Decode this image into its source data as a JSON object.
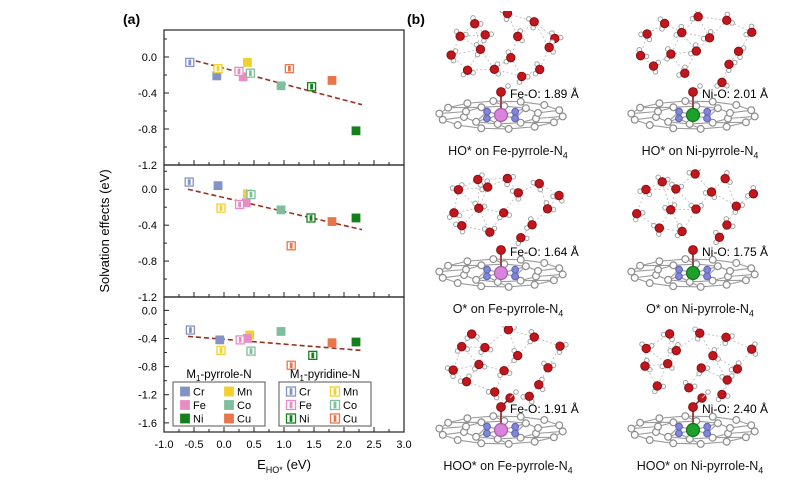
{
  "figure": {
    "panel_a_label": "(a)",
    "panel_b_label": "(b)"
  },
  "colors": {
    "metals": {
      "Cr": "#8393c7",
      "Mn": "#f2d02e",
      "Fe": "#e88cc3",
      "Co": "#7fbf9e",
      "Ni": "#15801c",
      "Cu": "#e8764a"
    },
    "trend_line": "#9b2f20",
    "axis": "#222222",
    "fe_atom": "#d983dc",
    "ni_atom": "#1ea12b",
    "n_atom": "#8286d6",
    "c_atom": "#fdfdfd",
    "o_atom": "#c3161c",
    "h_atom": "#ffffff",
    "hbond": "#c4c4c4"
  },
  "chart_data": {
    "type": "scatter",
    "title": "",
    "xlabel_base": "E",
    "xlabel_sub": "HO*",
    "xlabel_unit": " (eV)",
    "ylabel": "Solvation effects (eV)",
    "xlim": [
      -1.0,
      3.0
    ],
    "xticks": [
      "-1.0",
      "-0.5",
      "0.0",
      "0.5",
      "1.0",
      "1.5",
      "2.0",
      "2.5",
      "3.0"
    ],
    "xtick_values": [
      -1.0,
      -0.5,
      0.0,
      0.5,
      1.0,
      1.5,
      2.0,
      2.5,
      3.0
    ],
    "grid": false,
    "legend": {
      "position": "bottom subplot inside",
      "groups": [
        {
          "title_base": "M",
          "title_sub": "1",
          "title_rest": "-pyrrole-N",
          "style": "filled",
          "entries": [
            "Cr",
            "Mn",
            "Fe",
            "Co",
            "Ni",
            "Cu"
          ]
        },
        {
          "title_base": "M",
          "title_sub": "1",
          "title_rest": "-pyridine-N",
          "style": "open",
          "entries": [
            "Cr",
            "Mn",
            "Fe",
            "Co",
            "Ni",
            "Cu"
          ]
        }
      ]
    },
    "subplots": [
      {
        "adsorbate": "HO*",
        "ylim": [
          0.3,
          -1.2
        ],
        "yticks": [
          0.0,
          -0.4,
          -0.8,
          -1.2
        ],
        "trend": [
          [
            -0.6,
            -0.02
          ],
          [
            2.3,
            -0.53
          ]
        ],
        "series": [
          {
            "name": "pyrrole",
            "style": "filled",
            "points": {
              "Cr": [
                -0.12,
                -0.21
              ],
              "Mn": [
                0.39,
                -0.06
              ],
              "Fe": [
                0.32,
                -0.22
              ],
              "Co": [
                0.95,
                -0.32
              ],
              "Ni": [
                2.2,
                -0.82
              ],
              "Cu": [
                1.8,
                -0.26
              ]
            }
          },
          {
            "name": "pyridine",
            "style": "open",
            "points": {
              "Cr": [
                -0.57,
                -0.06
              ],
              "Mn": [
                -0.1,
                -0.13
              ],
              "Fe": [
                0.25,
                -0.16
              ],
              "Co": [
                0.44,
                -0.18
              ],
              "Ni": [
                1.46,
                -0.33
              ],
              "Cu": [
                1.09,
                -0.13
              ]
            }
          }
        ]
      },
      {
        "adsorbate": "O*",
        "ylim": [
          0.27,
          -1.2
        ],
        "yticks": [
          0.0,
          -0.4,
          -0.8,
          -1.2
        ],
        "trend": [
          [
            -0.6,
            0.0
          ],
          [
            2.3,
            -0.45
          ]
        ],
        "series": [
          {
            "name": "pyrrole",
            "style": "filled",
            "points": {
              "Cr": [
                -0.1,
                0.04
              ],
              "Mn": [
                0.39,
                -0.05
              ],
              "Fe": [
                0.37,
                -0.15
              ],
              "Co": [
                0.95,
                -0.23
              ],
              "Ni": [
                2.2,
                -0.32
              ],
              "Cu": [
                1.8,
                -0.36
              ]
            }
          },
          {
            "name": "pyridine",
            "style": "open",
            "points": {
              "Cr": [
                -0.58,
                0.08
              ],
              "Mn": [
                -0.05,
                -0.21
              ],
              "Fe": [
                0.26,
                -0.17
              ],
              "Co": [
                0.45,
                -0.06
              ],
              "Ni": [
                1.45,
                -0.32
              ],
              "Cu": [
                1.12,
                -0.63
              ]
            }
          }
        ]
      },
      {
        "adsorbate": "HOO*",
        "ylim": [
          0.19,
          -1.73
        ],
        "yticks": [
          0.0,
          -0.4,
          -0.8,
          -1.2,
          -1.6
        ],
        "trend": [
          [
            -0.6,
            -0.37
          ],
          [
            2.3,
            -0.57
          ]
        ],
        "series": [
          {
            "name": "pyrrole",
            "style": "filled",
            "points": {
              "Cr": [
                -0.07,
                -0.42
              ],
              "Mn": [
                0.43,
                -0.35
              ],
              "Fe": [
                0.39,
                -0.4
              ],
              "Co": [
                0.95,
                -0.3
              ],
              "Ni": [
                2.2,
                -0.45
              ],
              "Cu": [
                1.8,
                -0.46
              ]
            }
          },
          {
            "name": "pyridine",
            "style": "open",
            "points": {
              "Cr": [
                -0.56,
                -0.28
              ],
              "Mn": [
                -0.05,
                -0.57
              ],
              "Fe": [
                0.27,
                -0.42
              ],
              "Co": [
                0.45,
                -0.58
              ],
              "Ni": [
                1.48,
                -0.64
              ],
              "Cu": [
                1.12,
                -0.78
              ]
            }
          }
        ]
      }
    ]
  },
  "molecules": {
    "panels": [
      {
        "adsorbate": "HO*",
        "metal": "Fe",
        "bond_label": "Fe-O: 1.89 Å",
        "caption_base": "HO* on Fe-pyrrole-N",
        "caption_sub": "4"
      },
      {
        "adsorbate": "HO*",
        "metal": "Ni",
        "bond_label": "Ni-O: 2.01 Å",
        "caption_base": "HO* on Ni-pyrrole-N",
        "caption_sub": "4"
      },
      {
        "adsorbate": "O*",
        "metal": "Fe",
        "bond_label": "Fe-O: 1.64 Å",
        "caption_base": "O* on Fe-pyrrole-N",
        "caption_sub": "4"
      },
      {
        "adsorbate": "O*",
        "metal": "Ni",
        "bond_label": "Ni-O: 1.75 Å",
        "caption_base": "O* on Ni-pyrrole-N",
        "caption_sub": "4"
      },
      {
        "adsorbate": "HOO*",
        "metal": "Fe",
        "bond_label": "Fe-O: 1.91 Å",
        "caption_base": "HOO* on Fe-pyrrole-N",
        "caption_sub": "4"
      },
      {
        "adsorbate": "HOO*",
        "metal": "Ni",
        "bond_label": "Ni-O: 2.40 Å",
        "caption_base": "HOO* on Ni-pyrrole-N",
        "caption_sub": "4"
      }
    ]
  }
}
